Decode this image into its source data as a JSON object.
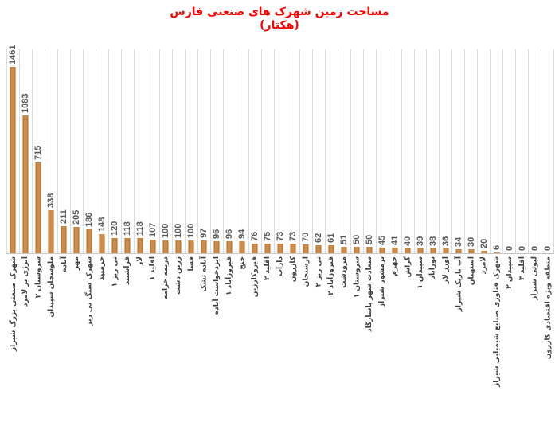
{
  "title": {
    "line1": "مساحت زمین شهرک های صنعتی فارس",
    "line2": "(هکتار)"
  },
  "colors": {
    "title_text": "#FF0000",
    "bar_fill": "#C9823B",
    "bar_edge": "#A86A24",
    "value_label": "#595959",
    "category_label": "#3F3F3F",
    "gridline": "#DCDCDC",
    "axis_line": "#C6C6C6",
    "background": "#FFFFFF"
  },
  "chart_data": {
    "type": "bar",
    "title": "مساحت زمین شهرک های صنعتی فارس (هکتار)",
    "xlabel": "",
    "ylabel": "",
    "ylim": [
      0,
      1600
    ],
    "grid": "vertical category gridlines only",
    "legend": "none",
    "value_labels": "rotated 90°, above each bar",
    "category_labels": "rotated 90°, below axis",
    "categories": [
      "شهرک صنعتی بزرگ شیراز",
      "انرژی بر لامرد",
      "سروستان ۲",
      "ملوسجان سپیدان",
      "آباده",
      "مهر",
      "شهرک سنگ نی ریز",
      "خرمبید",
      "نی ریز ۱",
      "فراشبند",
      "لار",
      "اقلید ۱",
      "دریمه خرامه",
      "زرین دشت",
      "فسا",
      "آباده تشک",
      "ایزدخواست آباده",
      "فیروزآباد ۱",
      "خنج",
      "قیروکارزین",
      "اقلید ۲",
      "داراب",
      "کازرون",
      "ارسنجان",
      "نی ریز ۲",
      "فیروزآباد ۲",
      "مرودشت",
      "سروستان ۱",
      "سعادت شهر پاسارگاد",
      "برمشور شیراز",
      "جهرم",
      "گراش",
      "سپیدان ۱",
      "نورآباد",
      "اورز لار",
      "آب باریک شیراز",
      "استهبان",
      "لامرد",
      "شهرک فناوری صنایع شیمیایی شیراز",
      "سپیدان ۲",
      "اقلید ۳",
      "لپوئی شیراز",
      "منطقه ویژه اقتصادی کازرون"
    ],
    "values": [
      1461,
      1083,
      715,
      338,
      211,
      205,
      186,
      148,
      120,
      118,
      118,
      107,
      100,
      100,
      100,
      97,
      96,
      96,
      94,
      76,
      75,
      73,
      73,
      70,
      62,
      61,
      51,
      50,
      50,
      45,
      41,
      40,
      39,
      38,
      36,
      34,
      30,
      20,
      6,
      0,
      0,
      0,
      0
    ]
  }
}
